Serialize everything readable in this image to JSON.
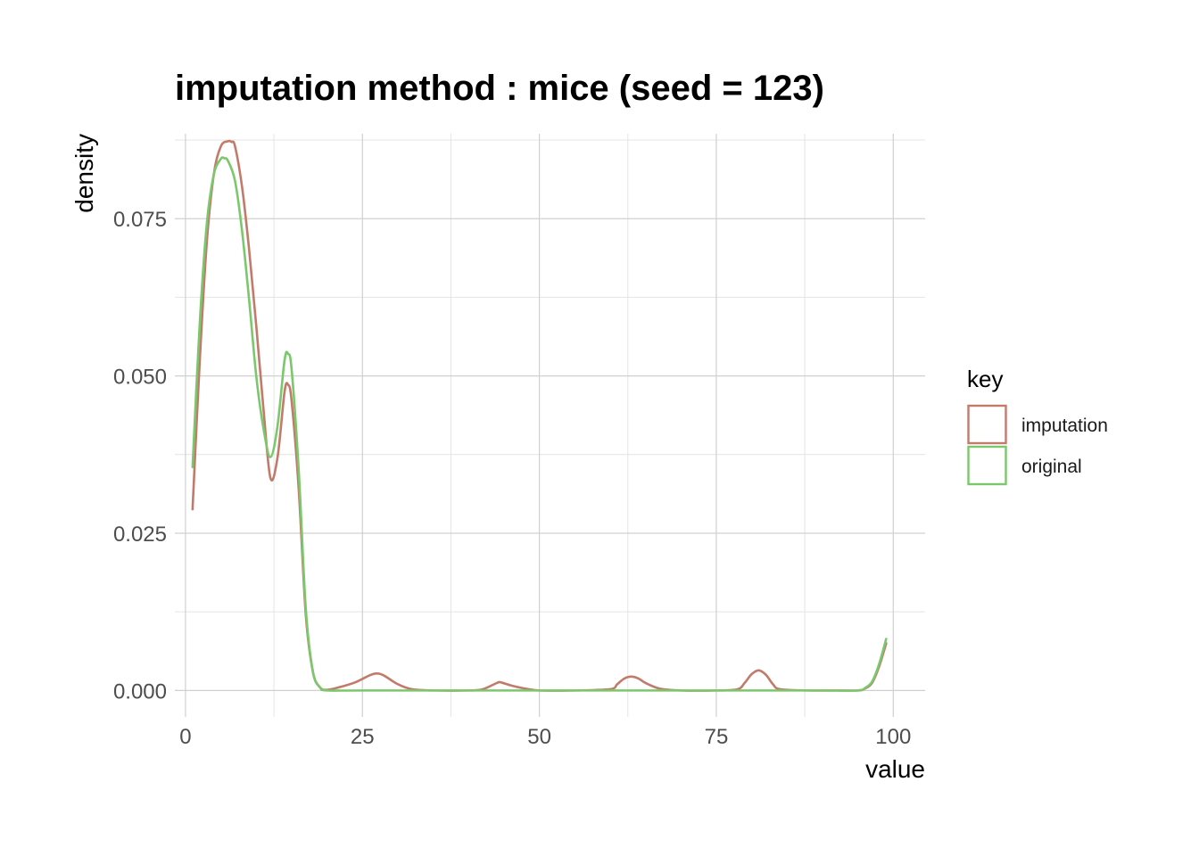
{
  "chart_data": {
    "type": "line",
    "title": "imputation method : mice (seed = 123)",
    "xlabel": "value",
    "ylabel": "density",
    "xlim": [
      -1.5,
      104.5
    ],
    "ylim": [
      -0.0042,
      0.0885
    ],
    "x_ticks": [
      0,
      25,
      50,
      75,
      100
    ],
    "x_tick_labels": [
      "0",
      "25",
      "50",
      "75",
      "100"
    ],
    "y_ticks": [
      0.0,
      0.025,
      0.05,
      0.075
    ],
    "y_tick_labels": [
      "0.000",
      "0.025",
      "0.050",
      "0.075"
    ],
    "grid": true,
    "legend": {
      "title": "key",
      "position": "right"
    },
    "series": [
      {
        "name": "imputation",
        "color": "#c27b6b",
        "x": [
          1,
          2,
          3,
          4,
          5,
          6,
          6.5,
          7,
          8,
          9,
          10,
          11,
          12,
          13,
          14,
          14.5,
          15,
          16,
          17,
          18,
          19,
          20,
          22,
          24,
          26,
          27,
          28,
          30,
          32,
          35,
          40,
          42,
          44,
          44.5,
          46,
          48,
          50,
          55,
          60,
          61,
          62,
          63,
          64,
          65,
          67,
          70,
          75,
          78,
          79,
          80,
          81,
          82,
          83,
          84,
          88,
          92,
          95,
          96,
          97,
          98,
          99
        ],
        "values": [
          0.0288,
          0.052,
          0.071,
          0.082,
          0.0865,
          0.0873,
          0.0872,
          0.0865,
          0.08,
          0.07,
          0.058,
          0.045,
          0.0338,
          0.037,
          0.0475,
          0.0486,
          0.046,
          0.032,
          0.012,
          0.003,
          0.0005,
          0.0001,
          0.0006,
          0.0013,
          0.0024,
          0.0027,
          0.0024,
          0.001,
          0.0002,
          0.0,
          0.0,
          0.0002,
          0.0012,
          0.0013,
          0.0008,
          0.0003,
          0.0,
          0.0,
          0.0002,
          0.001,
          0.0019,
          0.0022,
          0.0019,
          0.0012,
          0.0003,
          0.0,
          0.0,
          0.0002,
          0.0012,
          0.0026,
          0.0032,
          0.0025,
          0.001,
          0.0002,
          0.0,
          0.0,
          0.0,
          0.0003,
          0.0012,
          0.0038,
          0.0075
        ]
      },
      {
        "name": "original",
        "color": "#7bc86c",
        "x": [
          1,
          2,
          3,
          4,
          5,
          5.5,
          6,
          7,
          8,
          9,
          10,
          11,
          12,
          13,
          14,
          14.5,
          15,
          16,
          17,
          18,
          19,
          20,
          25,
          50,
          75,
          90,
          95,
          96,
          97,
          98,
          99
        ],
        "values": [
          0.0355,
          0.058,
          0.074,
          0.082,
          0.0845,
          0.0846,
          0.0842,
          0.081,
          0.073,
          0.062,
          0.05,
          0.0418,
          0.0371,
          0.042,
          0.0525,
          0.0535,
          0.051,
          0.035,
          0.013,
          0.003,
          0.0005,
          0.0,
          0.0,
          0.0,
          0.0,
          0.0,
          0.0,
          0.0004,
          0.0014,
          0.0042,
          0.0082
        ]
      }
    ]
  }
}
